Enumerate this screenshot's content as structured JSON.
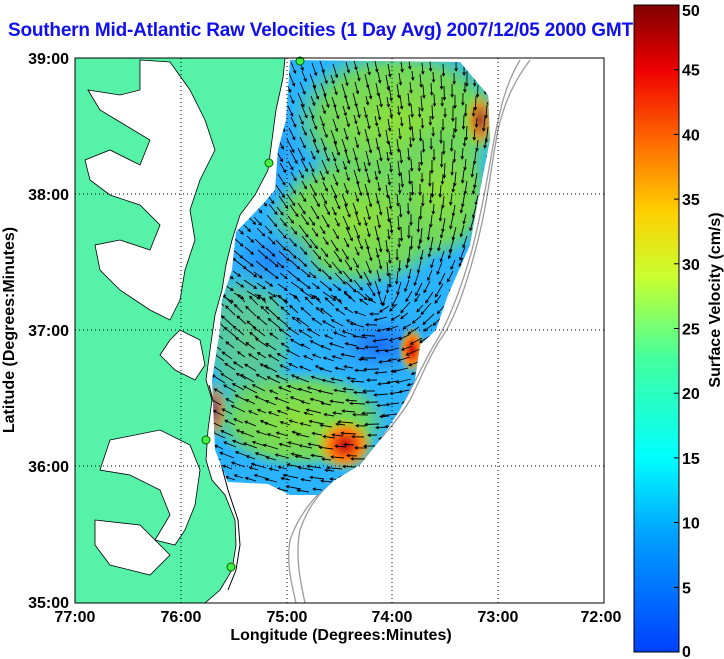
{
  "title": "Southern Mid-Atlantic Raw Velocities (1 Day Avg) 2007/12/05 2000 GMT",
  "map": {
    "x_axis": {
      "label": "Longitude (Degrees:Minutes)",
      "ticks": [
        "77:00",
        "76:00",
        "75:00",
        "74:00",
        "73:00",
        "72:00"
      ]
    },
    "y_axis": {
      "label": "Latitude (Degrees:Minutes)",
      "ticks": [
        "39:00",
        "38:00",
        "37:00",
        "36:00",
        "35:00"
      ]
    },
    "grid": "dotted"
  },
  "colorbar": {
    "label": "Surface Velocity (cm/s)",
    "ticks": [
      "50",
      "45",
      "40",
      "35",
      "30",
      "25",
      "20",
      "15",
      "10",
      "5",
      "0"
    ],
    "min": 0,
    "max": 50
  },
  "colors": {
    "land": "#55f2a8",
    "low_speed": "#1f6bff",
    "mid_speed": "#7dd84e",
    "high_speed": "#d81010",
    "title": "#1010ee"
  }
}
